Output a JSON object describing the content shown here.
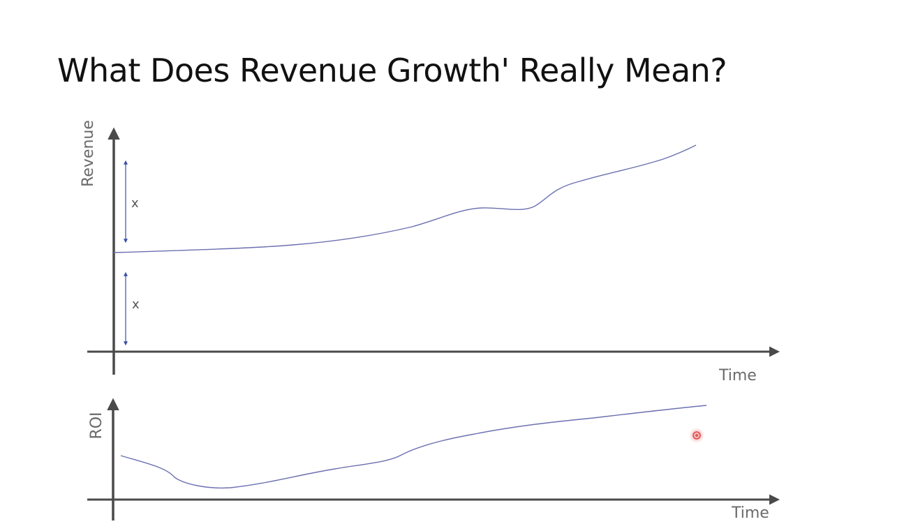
{
  "slide": {
    "title": "What Does Revenue Growth' Really Mean?"
  },
  "revenue_chart": {
    "ylabel": "Revenue",
    "xlabel": "Time",
    "annotations": [
      {
        "label": "x"
      },
      {
        "label": "x"
      }
    ],
    "line_color": "#6b70b0",
    "arrow_color": "#3b4ea8"
  },
  "roi_chart": {
    "ylabel": "ROI",
    "xlabel": "Time",
    "line_color": "#6b70b0"
  },
  "cursor": {
    "color": "#e24a4a"
  },
  "colors": {
    "axis": "#4a4a4a",
    "title": "#111111"
  }
}
